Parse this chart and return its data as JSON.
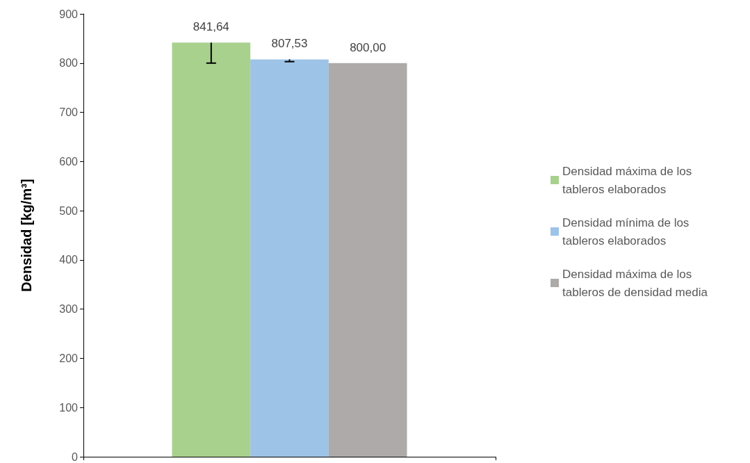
{
  "chart_data": {
    "type": "bar",
    "ylabel": "Densidad [kg/m³]",
    "categories": [
      null
    ],
    "series": [
      {
        "name": "Densidad máxima de los tableros elaborados",
        "color": "#a9d18e",
        "values": [
          841.64
        ],
        "value_labels": [
          "841,64"
        ],
        "errors": [
          [
            800,
            841.64
          ]
        ]
      },
      {
        "name": "Densidad mínima de los tableros elaborados",
        "color": "#9dc3e6",
        "values": [
          807.53
        ],
        "value_labels": [
          "807,53"
        ],
        "errors": [
          [
            803,
            807.53
          ]
        ]
      },
      {
        "name": "Densidad máxima de los tableros de densidad media",
        "color": "#aeaaaa",
        "values": [
          800
        ],
        "value_labels": [
          "800,00"
        ]
      }
    ],
    "ylim": [
      0,
      900
    ],
    "yticks": [
      0,
      100,
      200,
      300,
      400,
      500,
      600,
      700,
      800,
      900
    ],
    "grid": false,
    "legend": "right"
  }
}
